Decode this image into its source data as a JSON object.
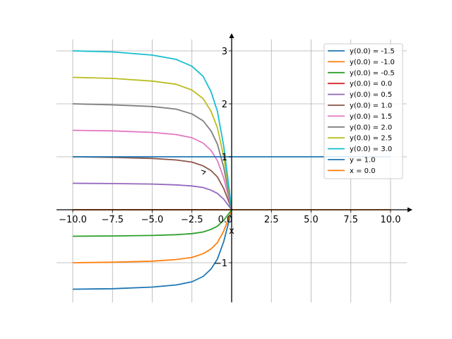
{
  "chart_data": {
    "type": "line",
    "title": "",
    "xlabel": "x",
    "ylabel": "",
    "xlim": [
      -11.0,
      11.0
    ],
    "ylim": [
      -1.75,
      3.35
    ],
    "grid": true,
    "legend_position": "top-right",
    "x_ticks": [
      {
        "value": -10.0,
        "label": "−10.0"
      },
      {
        "value": -7.5,
        "label": "−7.5"
      },
      {
        "value": -5.0,
        "label": "−5.0"
      },
      {
        "value": -2.5,
        "label": "−2.5"
      },
      {
        "value": 0.0,
        "label": "0.0"
      },
      {
        "value": 2.5,
        "label": "2.5"
      },
      {
        "value": 5.0,
        "label": "5.0"
      },
      {
        "value": 7.5,
        "label": "7.5"
      },
      {
        "value": 10.0,
        "label": "10.0"
      }
    ],
    "y_ticks": [
      {
        "value": -1,
        "label": "−1"
      },
      {
        "value": 0,
        "label": "0"
      },
      {
        "value": 1,
        "label": "1"
      },
      {
        "value": 2,
        "label": "2"
      },
      {
        "value": 3,
        "label": "3"
      }
    ],
    "series": [
      {
        "name": "y(0.0) = -1.5",
        "color": "#1f77b4",
        "x": [
          -10,
          -7.5,
          -5,
          -3.5,
          -2.5,
          -1.8,
          -1.3,
          -0.9,
          -0.5,
          -0.2,
          0
        ],
        "y": [
          -1.5,
          -1.49,
          -1.46,
          -1.42,
          -1.36,
          -1.26,
          -1.12,
          -0.93,
          -0.6,
          -0.25,
          0
        ]
      },
      {
        "name": "y(0.0) = -1.0",
        "color": "#ff7f0e",
        "x": [
          -10,
          -7.5,
          -5,
          -3.5,
          -2.5,
          -1.8,
          -1.3,
          -0.9,
          -0.5,
          -0.2,
          0
        ],
        "y": [
          -1.0,
          -0.99,
          -0.97,
          -0.94,
          -0.9,
          -0.83,
          -0.74,
          -0.62,
          -0.4,
          -0.17,
          0
        ]
      },
      {
        "name": "y(0.0) = -0.5",
        "color": "#2ca02c",
        "x": [
          -10,
          -7.5,
          -5,
          -3.5,
          -2.5,
          -1.8,
          -1.3,
          -0.9,
          -0.5,
          -0.2,
          0
        ],
        "y": [
          -0.5,
          -0.495,
          -0.485,
          -0.47,
          -0.45,
          -0.42,
          -0.37,
          -0.31,
          -0.2,
          -0.08,
          0
        ]
      },
      {
        "name": "y(0.0) = 0.0",
        "color": "#d62728",
        "x": [
          -10,
          0
        ],
        "y": [
          0,
          0
        ]
      },
      {
        "name": "y(0.0) = 0.5",
        "color": "#9467bd",
        "x": [
          -10,
          -7.5,
          -5,
          -3.5,
          -2.5,
          -1.8,
          -1.3,
          -0.9,
          -0.5,
          -0.2,
          0
        ],
        "y": [
          0.5,
          0.495,
          0.485,
          0.47,
          0.45,
          0.42,
          0.37,
          0.31,
          0.2,
          0.08,
          0
        ]
      },
      {
        "name": "y(0.0) = 1.0",
        "color": "#8c564b",
        "x": [
          -10,
          -7.5,
          -5,
          -3.5,
          -2.5,
          -1.8,
          -1.3,
          -0.9,
          -0.5,
          -0.2,
          0
        ],
        "y": [
          1.0,
          0.99,
          0.97,
          0.94,
          0.9,
          0.83,
          0.74,
          0.62,
          0.4,
          0.17,
          0
        ]
      },
      {
        "name": "y(0.0) = 1.5",
        "color": "#e377c2",
        "x": [
          -10,
          -7.5,
          -5,
          -3.5,
          -2.5,
          -1.8,
          -1.3,
          -0.9,
          -0.5,
          -0.2,
          0
        ],
        "y": [
          1.5,
          1.49,
          1.46,
          1.42,
          1.36,
          1.26,
          1.12,
          0.93,
          0.6,
          0.25,
          0
        ]
      },
      {
        "name": "y(0.0) = 2.0",
        "color": "#7f7f7f",
        "x": [
          -10,
          -7.5,
          -5,
          -3.5,
          -2.5,
          -1.8,
          -1.3,
          -0.9,
          -0.5,
          -0.2,
          0
        ],
        "y": [
          2.0,
          1.98,
          1.95,
          1.9,
          1.81,
          1.68,
          1.49,
          1.24,
          0.8,
          0.33,
          0
        ]
      },
      {
        "name": "y(0.0) = 2.5",
        "color": "#bcbd22",
        "x": [
          -10,
          -7.5,
          -5,
          -3.5,
          -2.5,
          -1.8,
          -1.3,
          -0.9,
          -0.5,
          -0.2,
          0
        ],
        "y": [
          2.5,
          2.48,
          2.43,
          2.37,
          2.26,
          2.1,
          1.86,
          1.55,
          1.0,
          0.42,
          0
        ]
      },
      {
        "name": "y(0.0) = 3.0",
        "color": "#17becf",
        "x": [
          -10,
          -7.5,
          -5,
          -3.5,
          -2.5,
          -1.8,
          -1.3,
          -0.9,
          -0.5,
          -0.2,
          0
        ],
        "y": [
          3.0,
          2.98,
          2.92,
          2.84,
          2.71,
          2.52,
          2.23,
          1.86,
          1.2,
          0.5,
          0
        ]
      },
      {
        "name": "y = 1.0",
        "color": "#1f77b4",
        "x": [
          -10,
          10
        ],
        "y": [
          1.0,
          1.0
        ]
      },
      {
        "name": "x = 0.0",
        "color": "#ff7f0e",
        "x": [
          -10,
          10
        ],
        "y": [
          0,
          0
        ]
      }
    ]
  }
}
